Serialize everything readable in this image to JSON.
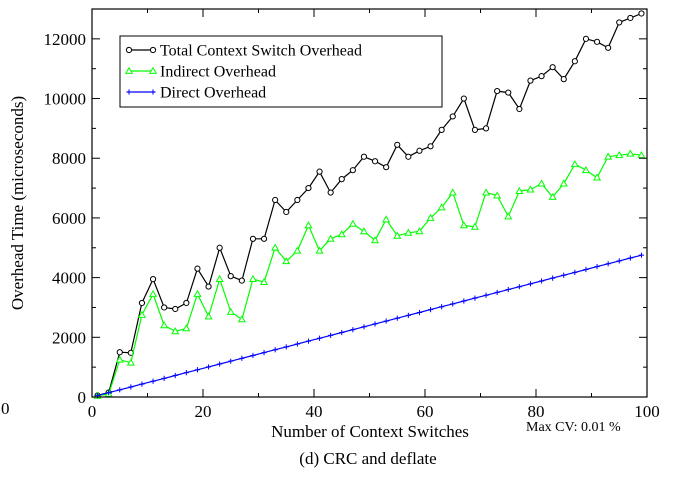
{
  "chart_data": {
    "type": "line",
    "title": "",
    "caption": "(d) CRC and deflate",
    "xlabel": "Number of Context Switches",
    "ylabel": "Overhead Time (microseconds)",
    "xlim": [
      0,
      100
    ],
    "ylim": [
      0,
      13000
    ],
    "xticks": [
      0,
      20,
      40,
      60,
      80,
      100
    ],
    "xtick_labels": [
      "0",
      "20",
      "40",
      "60",
      "80",
      "100"
    ],
    "yticks": [
      0,
      2000,
      4000,
      6000,
      8000,
      10000,
      12000
    ],
    "ytick_labels": [
      "0",
      "2000",
      "4000",
      "6000",
      "8000",
      "10000",
      "12000"
    ],
    "grid": false,
    "legend_position": "top-left",
    "annotation": "Max CV: 0.01 %",
    "stray_label": "0",
    "x": [
      1,
      3,
      5,
      7,
      9,
      11,
      13,
      15,
      17,
      19,
      21,
      23,
      25,
      27,
      29,
      31,
      33,
      35,
      37,
      39,
      41,
      43,
      45,
      47,
      49,
      51,
      53,
      55,
      57,
      59,
      61,
      63,
      65,
      67,
      69,
      71,
      73,
      75,
      77,
      79,
      81,
      83,
      85,
      87,
      89,
      91,
      93,
      95,
      97,
      99
    ],
    "series": [
      {
        "name": "Total Context Switch Overhead",
        "color": "#000000",
        "marker": "circle",
        "values": [
          50,
          150,
          1500,
          1480,
          3150,
          3950,
          3000,
          2950,
          3150,
          4300,
          3700,
          5000,
          4050,
          3900,
          5300,
          5300,
          6600,
          6200,
          6600,
          7000,
          7550,
          6850,
          7300,
          7600,
          8050,
          7900,
          7700,
          8450,
          8050,
          8250,
          8400,
          8950,
          9400,
          10000,
          8950,
          9000,
          10250,
          10200,
          9650,
          10600,
          10750,
          11050,
          10650,
          11250,
          12000,
          11900,
          11700,
          12550,
          12700,
          12850
        ]
      },
      {
        "name": "Indirect Overhead",
        "color": "#00ff00",
        "marker": "triangle",
        "values": [
          40,
          100,
          1250,
          1150,
          2750,
          3450,
          2400,
          2200,
          2300,
          3450,
          2700,
          3950,
          2850,
          2600,
          3950,
          3850,
          5000,
          4550,
          4900,
          5750,
          4900,
          5300,
          5450,
          5800,
          5550,
          5250,
          5950,
          5400,
          5500,
          5550,
          6000,
          6350,
          6850,
          5750,
          5700,
          6850,
          6750,
          6050,
          6900,
          6950,
          7150,
          6700,
          7150,
          7800,
          7600,
          7350,
          8050,
          8100,
          8150,
          8100
        ]
      },
      {
        "name": "Direct Overhead",
        "color": "#0000ff",
        "marker": "plus",
        "values": [
          48,
          144,
          240,
          336,
          432,
          528,
          624,
          720,
          816,
          912,
          1008,
          1104,
          1200,
          1296,
          1392,
          1488,
          1584,
          1680,
          1776,
          1872,
          1968,
          2064,
          2160,
          2256,
          2352,
          2448,
          2544,
          2640,
          2736,
          2832,
          2928,
          3024,
          3120,
          3216,
          3312,
          3408,
          3504,
          3600,
          3696,
          3792,
          3888,
          3984,
          4080,
          4176,
          4272,
          4368,
          4464,
          4560,
          4656,
          4752
        ]
      }
    ]
  }
}
